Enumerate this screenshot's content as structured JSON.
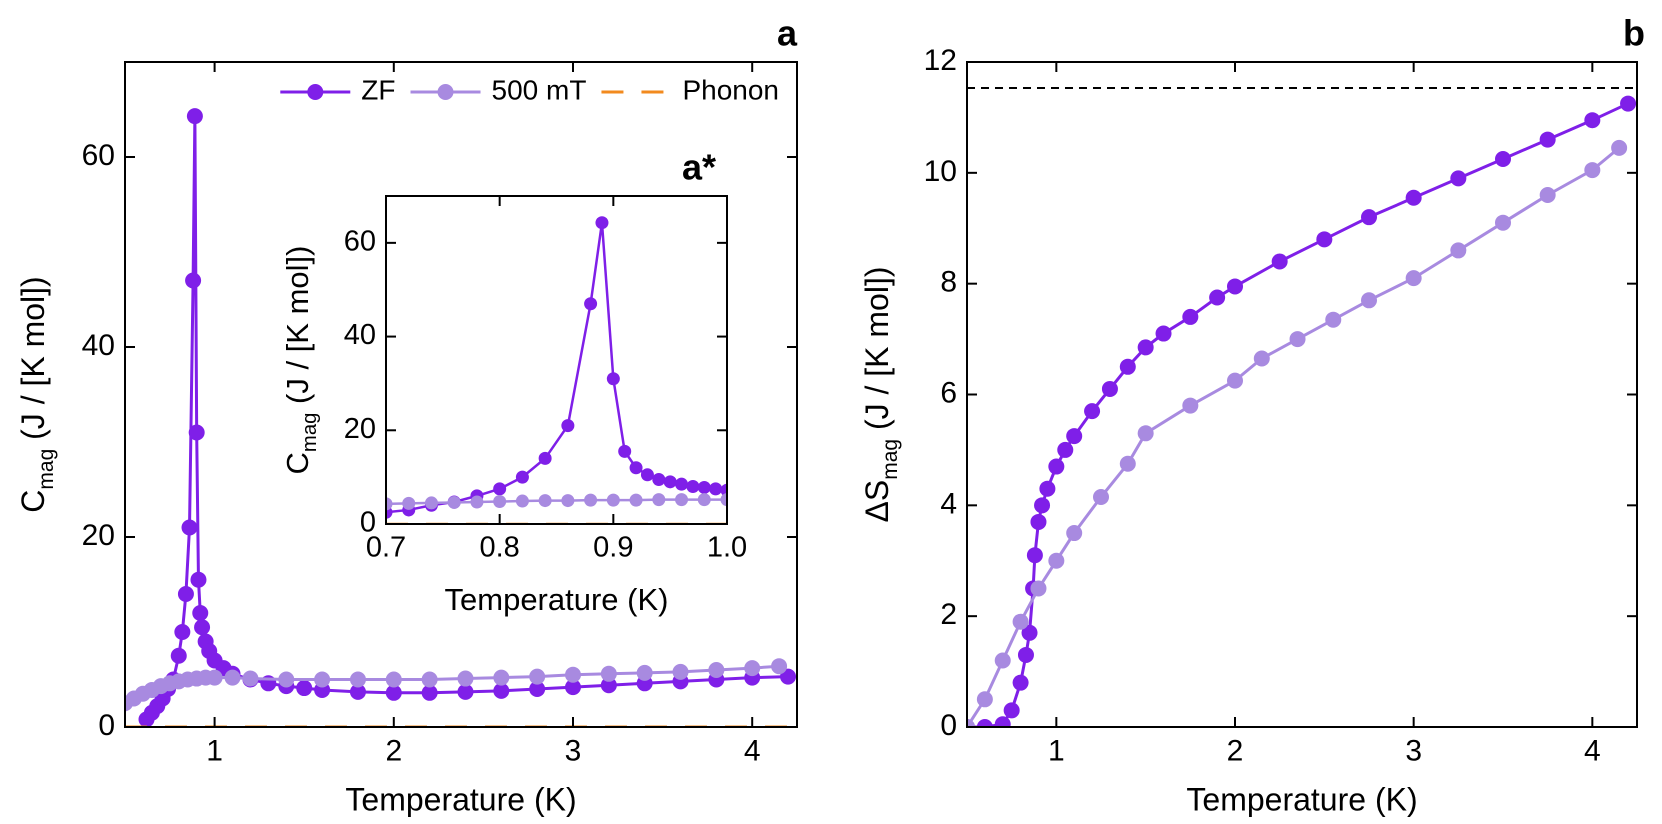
{
  "chart_data": [
    {
      "type": "line",
      "panel_label": "a",
      "xlabel": "Temperature (K)",
      "ylabel_parts": [
        "C",
        "mag",
        " (J / [K mol])"
      ],
      "xlim": [
        0.5,
        4.25
      ],
      "ylim": [
        0,
        70
      ],
      "xticks": [
        1,
        2,
        3,
        4
      ],
      "yticks": [
        0,
        20,
        40,
        60
      ],
      "legend": "upper right",
      "series": [
        {
          "name": "ZF",
          "color": "#7f1fe8",
          "marker": true,
          "linestyle": "solid",
          "x": [
            0.62,
            0.65,
            0.68,
            0.71,
            0.74,
            0.77,
            0.8,
            0.82,
            0.84,
            0.86,
            0.88,
            0.89,
            0.9,
            0.91,
            0.92,
            0.93,
            0.95,
            0.97,
            1.0,
            1.05,
            1.1,
            1.2,
            1.3,
            1.4,
            1.5,
            1.6,
            1.8,
            2.0,
            2.2,
            2.4,
            2.6,
            2.8,
            3.0,
            3.2,
            3.4,
            3.6,
            3.8,
            4.0,
            4.2
          ],
          "values": [
            0.8,
            1.5,
            2.2,
            3.0,
            4.0,
            5.0,
            7.5,
            10,
            14,
            21,
            47,
            64.3,
            31,
            15.5,
            12,
            10.5,
            9,
            8,
            7,
            6.2,
            5.6,
            5.0,
            4.6,
            4.3,
            4.1,
            3.9,
            3.7,
            3.6,
            3.6,
            3.7,
            3.8,
            4.0,
            4.2,
            4.4,
            4.6,
            4.8,
            5.0,
            5.2,
            5.3
          ]
        },
        {
          "name": "500 mT",
          "color": "#a88ae0",
          "marker": true,
          "linestyle": "solid",
          "x": [
            0.5,
            0.55,
            0.6,
            0.65,
            0.7,
            0.75,
            0.8,
            0.85,
            0.9,
            0.95,
            1.0,
            1.1,
            1.2,
            1.4,
            1.6,
            1.8,
            2.0,
            2.2,
            2.4,
            2.6,
            2.8,
            3.0,
            3.2,
            3.4,
            3.6,
            3.8,
            4.0,
            4.15
          ],
          "values": [
            2.5,
            3.0,
            3.5,
            3.9,
            4.3,
            4.6,
            4.8,
            5.0,
            5.1,
            5.2,
            5.2,
            5.2,
            5.1,
            5.0,
            5.0,
            5.0,
            5.0,
            5.0,
            5.1,
            5.2,
            5.3,
            5.5,
            5.6,
            5.7,
            5.8,
            6.0,
            6.2,
            6.4
          ]
        },
        {
          "name": "Phonon",
          "color": "#f28a1e",
          "marker": false,
          "linestyle": "dashed",
          "x": [
            0.5,
            4.2
          ],
          "values": [
            0,
            0
          ]
        }
      ]
    },
    {
      "type": "line",
      "panel_label": "a*",
      "xlabel": "Temperature (K)",
      "ylabel_parts": [
        "C",
        "mag",
        " (J / [K mol])"
      ],
      "xlim": [
        0.7,
        1.0
      ],
      "ylim": [
        0,
        70
      ],
      "xticks": [
        0.7,
        0.8,
        0.9,
        {
          "value": 1.0,
          "label": "1.0"
        }
      ],
      "yticks": [
        0,
        20,
        40,
        60
      ],
      "series": [
        {
          "color": "#7f1fe8",
          "marker": true,
          "linestyle": "solid",
          "x": [
            0.7,
            0.72,
            0.74,
            0.76,
            0.78,
            0.8,
            0.82,
            0.84,
            0.86,
            0.88,
            0.89,
            0.9,
            0.91,
            0.92,
            0.93,
            0.94,
            0.95,
            0.96,
            0.97,
            0.98,
            0.99,
            1.0
          ],
          "values": [
            2.5,
            3.0,
            4.0,
            4.7,
            6.0,
            7.5,
            10,
            14,
            21,
            47,
            64.3,
            31,
            15.5,
            12,
            10.5,
            9.5,
            9,
            8.5,
            8,
            7.8,
            7.5,
            7.2
          ]
        },
        {
          "color": "#a88ae0",
          "marker": true,
          "linestyle": "solid",
          "x": [
            0.7,
            0.72,
            0.74,
            0.76,
            0.78,
            0.8,
            0.82,
            0.84,
            0.86,
            0.88,
            0.9,
            0.92,
            0.94,
            0.96,
            0.98,
            1.0
          ],
          "values": [
            4.3,
            4.4,
            4.5,
            4.6,
            4.7,
            4.8,
            4.9,
            5.0,
            5.0,
            5.1,
            5.1,
            5.1,
            5.2,
            5.2,
            5.2,
            5.2
          ]
        },
        {
          "color": "#f28a1e",
          "marker": false,
          "linestyle": "dashed",
          "x": [
            0.7,
            1.0
          ],
          "values": [
            0,
            0
          ]
        }
      ]
    },
    {
      "type": "line",
      "panel_label": "b",
      "xlabel": "Temperature (K)",
      "ylabel_parts": [
        "ΔS",
        "mag",
        " (J / [K mol])"
      ],
      "xlim": [
        0.5,
        4.25
      ],
      "ylim": [
        0,
        12
      ],
      "xticks": [
        1,
        2,
        3,
        4
      ],
      "yticks": [
        0,
        2,
        4,
        6,
        8,
        10,
        12
      ],
      "hlines": [
        {
          "y": 11.53,
          "color": "#000000",
          "linestyle": "dashed"
        }
      ],
      "series": [
        {
          "color": "#7f1fe8",
          "marker": true,
          "linestyle": "solid",
          "x": [
            0.5,
            0.6,
            0.7,
            0.75,
            0.8,
            0.83,
            0.85,
            0.87,
            0.88,
            0.9,
            0.92,
            0.95,
            1.0,
            1.05,
            1.1,
            1.2,
            1.3,
            1.4,
            1.5,
            1.6,
            1.75,
            1.9,
            2.0,
            2.25,
            2.5,
            2.75,
            3.0,
            3.25,
            3.5,
            3.75,
            4.0,
            4.2
          ],
          "values": [
            0,
            0,
            0.05,
            0.3,
            0.8,
            1.3,
            1.7,
            2.5,
            3.1,
            3.7,
            4.0,
            4.3,
            4.7,
            5.0,
            5.25,
            5.7,
            6.1,
            6.5,
            6.85,
            7.1,
            7.4,
            7.75,
            7.95,
            8.4,
            8.8,
            9.2,
            9.55,
            9.9,
            10.25,
            10.6,
            10.95,
            11.25
          ]
        },
        {
          "color": "#a88ae0",
          "marker": true,
          "linestyle": "solid",
          "x": [
            0.5,
            0.6,
            0.7,
            0.8,
            0.9,
            1.0,
            1.1,
            1.25,
            1.4,
            1.5,
            1.75,
            2.0,
            2.15,
            2.35,
            2.55,
            2.75,
            3.0,
            3.25,
            3.5,
            3.75,
            4.0,
            4.15
          ],
          "values": [
            0,
            0.5,
            1.2,
            1.9,
            2.5,
            3.0,
            3.5,
            4.15,
            4.75,
            5.3,
            5.8,
            6.25,
            6.65,
            7.0,
            7.35,
            7.7,
            8.1,
            8.6,
            9.1,
            9.6,
            10.05,
            10.45
          ]
        }
      ]
    }
  ]
}
